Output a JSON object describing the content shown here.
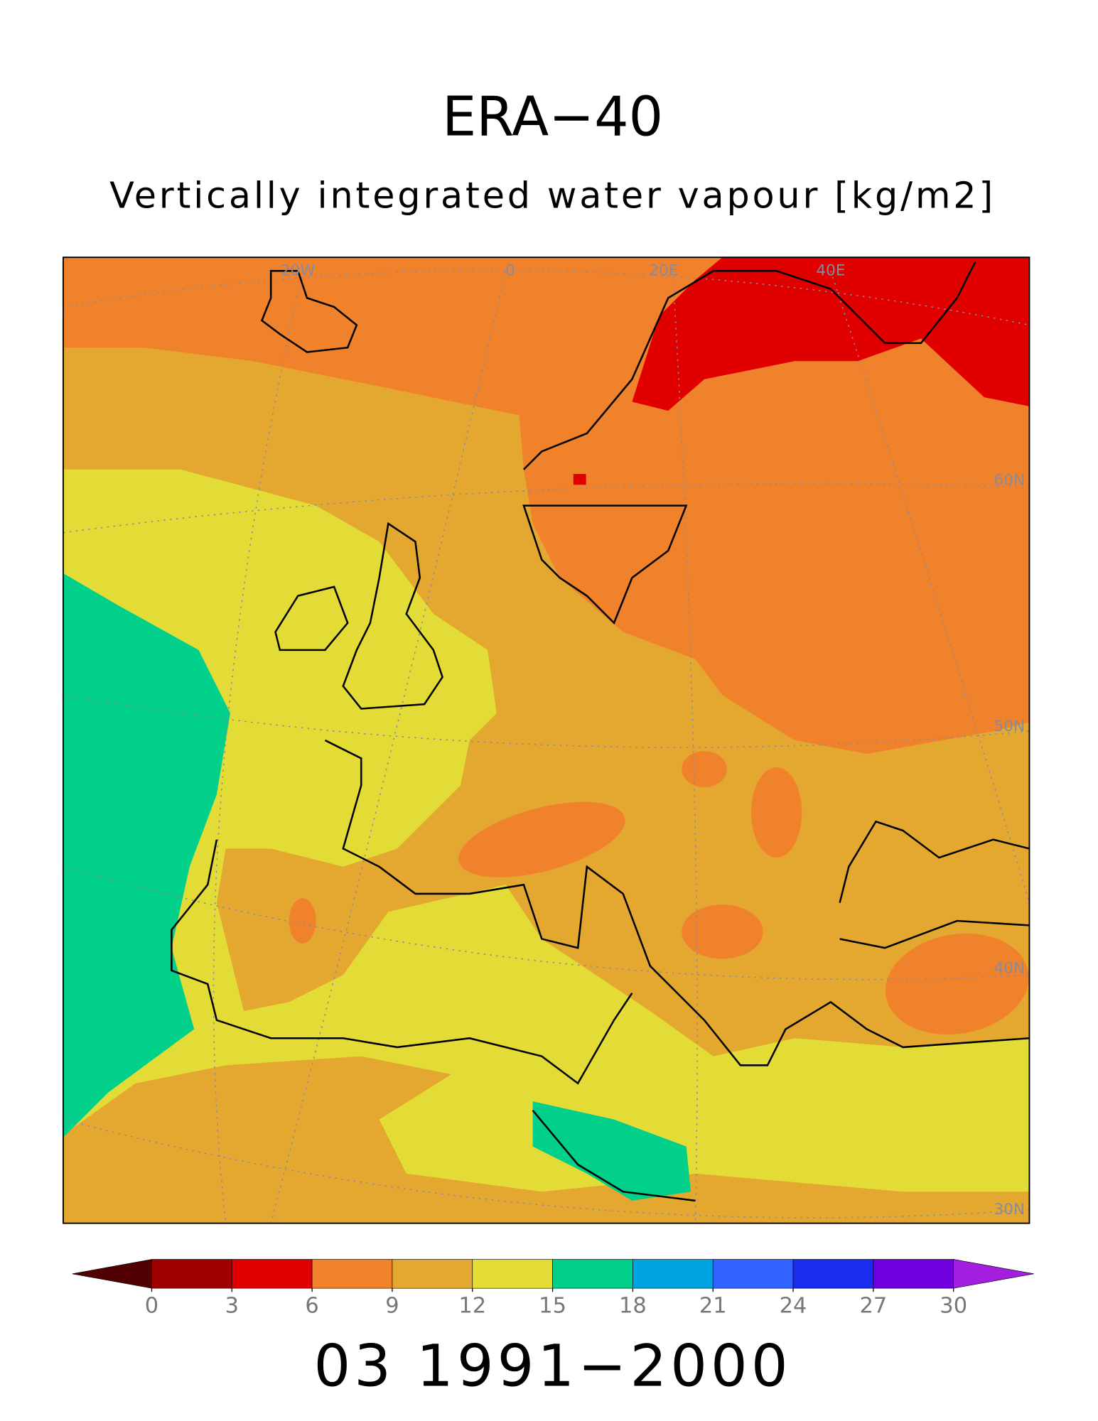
{
  "title": "ERA−40",
  "subtitle": "Vertically integrated water vapour [kg/m2]",
  "footer": "03 1991−2000",
  "graticule_labels": [
    "20W",
    "0",
    "20E",
    "40E",
    "60N",
    "50N",
    "40N",
    "30N"
  ],
  "colorbar": {
    "levels": [
      0,
      3,
      6,
      9,
      12,
      15,
      18,
      21,
      24,
      27,
      30
    ],
    "colors": [
      "#500000",
      "#a00000",
      "#e00000",
      "#f0822c",
      "#e4a830",
      "#e4dc36",
      "#00d08a",
      "#00a4e0",
      "#3262ff",
      "#1a2cf0",
      "#7000e0",
      "#a41ee0"
    ]
  }
}
